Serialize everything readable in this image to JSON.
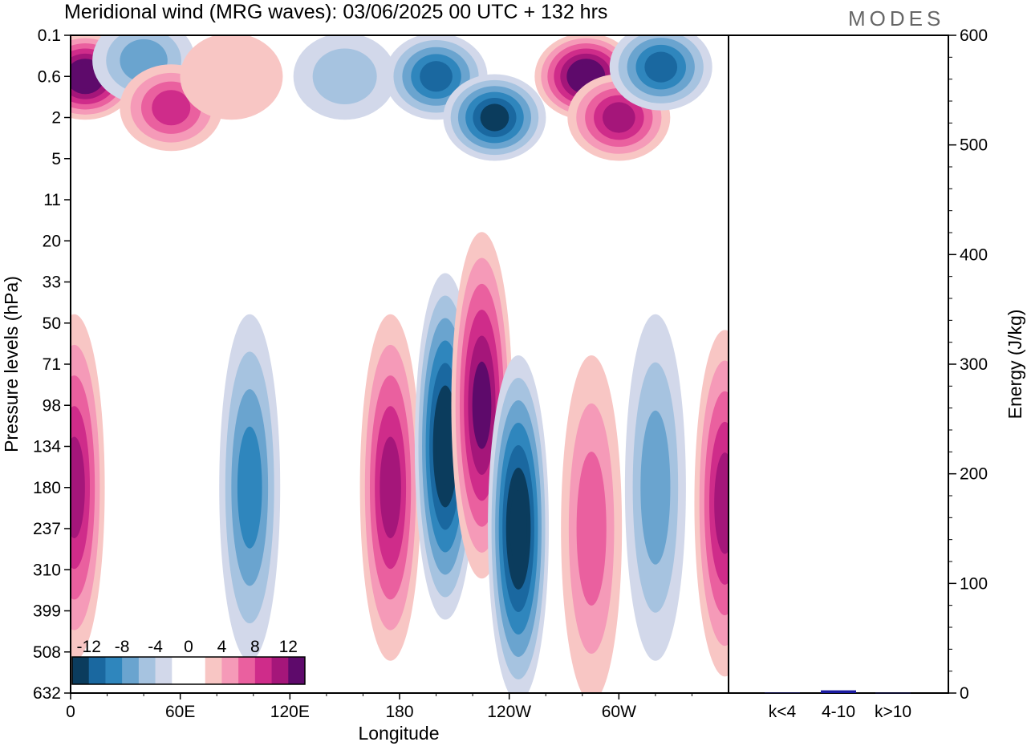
{
  "title": "Meridional wind (MRG waves):  03/06/2025  00 UTC  + 132 hrs",
  "logo": "MODES",
  "colors": {
    "negative": [
      "#0b3c5d",
      "#1a68a0",
      "#2f86bd",
      "#6aa4cf",
      "#a6c3e0",
      "#d2d8ea"
    ],
    "positive": [
      "#f8c6c4",
      "#f59ab8",
      "#ea609f",
      "#cf2c8a",
      "#a5167a",
      "#5e0a6b"
    ],
    "bar": "#1a1aa0"
  },
  "chart_data": [
    {
      "type": "heatmap",
      "title": "Meridional wind (MRG waves):  03/06/2025  00 UTC  + 132 hrs",
      "xlabel": "Longitude",
      "ylabel": "Pressure levels (hPa)",
      "x_ticks": [
        "0",
        "60E",
        "120E",
        "180",
        "120W",
        "60W"
      ],
      "y_ticks": [
        "0.1",
        "0.6",
        "2",
        "5",
        "11",
        "20",
        "33",
        "50",
        "71",
        "98",
        "134",
        "180",
        "237",
        "310",
        "399",
        "508",
        "632"
      ],
      "colorbar": {
        "labels": [
          "-12",
          "-8",
          "-4",
          "0",
          "4",
          "8",
          "12"
        ],
        "levels": [
          -14,
          -12,
          -10,
          -8,
          -6,
          -4,
          -2,
          2,
          4,
          6,
          8,
          10,
          12,
          14
        ]
      },
      "features": [
        {
          "lon": 8,
          "level": 0.6,
          "value": 14
        },
        {
          "lon": 40,
          "level": 0.3,
          "value": -6
        },
        {
          "lon": 55,
          "level": 1.5,
          "value": 8
        },
        {
          "lon": 88,
          "level": 0.6,
          "value": 2
        },
        {
          "lon": 150,
          "level": 0.6,
          "value": -4
        },
        {
          "lon": 200,
          "level": 0.6,
          "value": -10
        },
        {
          "lon": 232,
          "level": 2,
          "value": -12
        },
        {
          "lon": 282,
          "level": 0.6,
          "value": 14
        },
        {
          "lon": 300,
          "level": 2,
          "value": 10
        },
        {
          "lon": 323,
          "level": 0.4,
          "value": -10
        },
        {
          "lon": 2,
          "level": 180,
          "value": 10
        },
        {
          "lon": 98,
          "level": 180,
          "value": -8
        },
        {
          "lon": 175,
          "level": 180,
          "value": 10
        },
        {
          "lon": 205,
          "level": 134,
          "value": -14
        },
        {
          "lon": 225,
          "level": 98,
          "value": 12
        },
        {
          "lon": 245,
          "level": 237,
          "value": -14
        },
        {
          "lon": 285,
          "level": 237,
          "value": 6
        },
        {
          "lon": 320,
          "level": 180,
          "value": -6
        },
        {
          "lon": 358,
          "level": 200,
          "value": 10
        }
      ]
    },
    {
      "type": "bar",
      "ylabel": "Energy (J/kg)",
      "ylim": [
        0,
        600
      ],
      "y_ticks": [
        "0",
        "100",
        "200",
        "300",
        "400",
        "500",
        "600"
      ],
      "categories": [
        "k<4",
        "4-10",
        "k>10"
      ],
      "values": [
        0.3,
        2.5,
        0.2
      ]
    }
  ]
}
